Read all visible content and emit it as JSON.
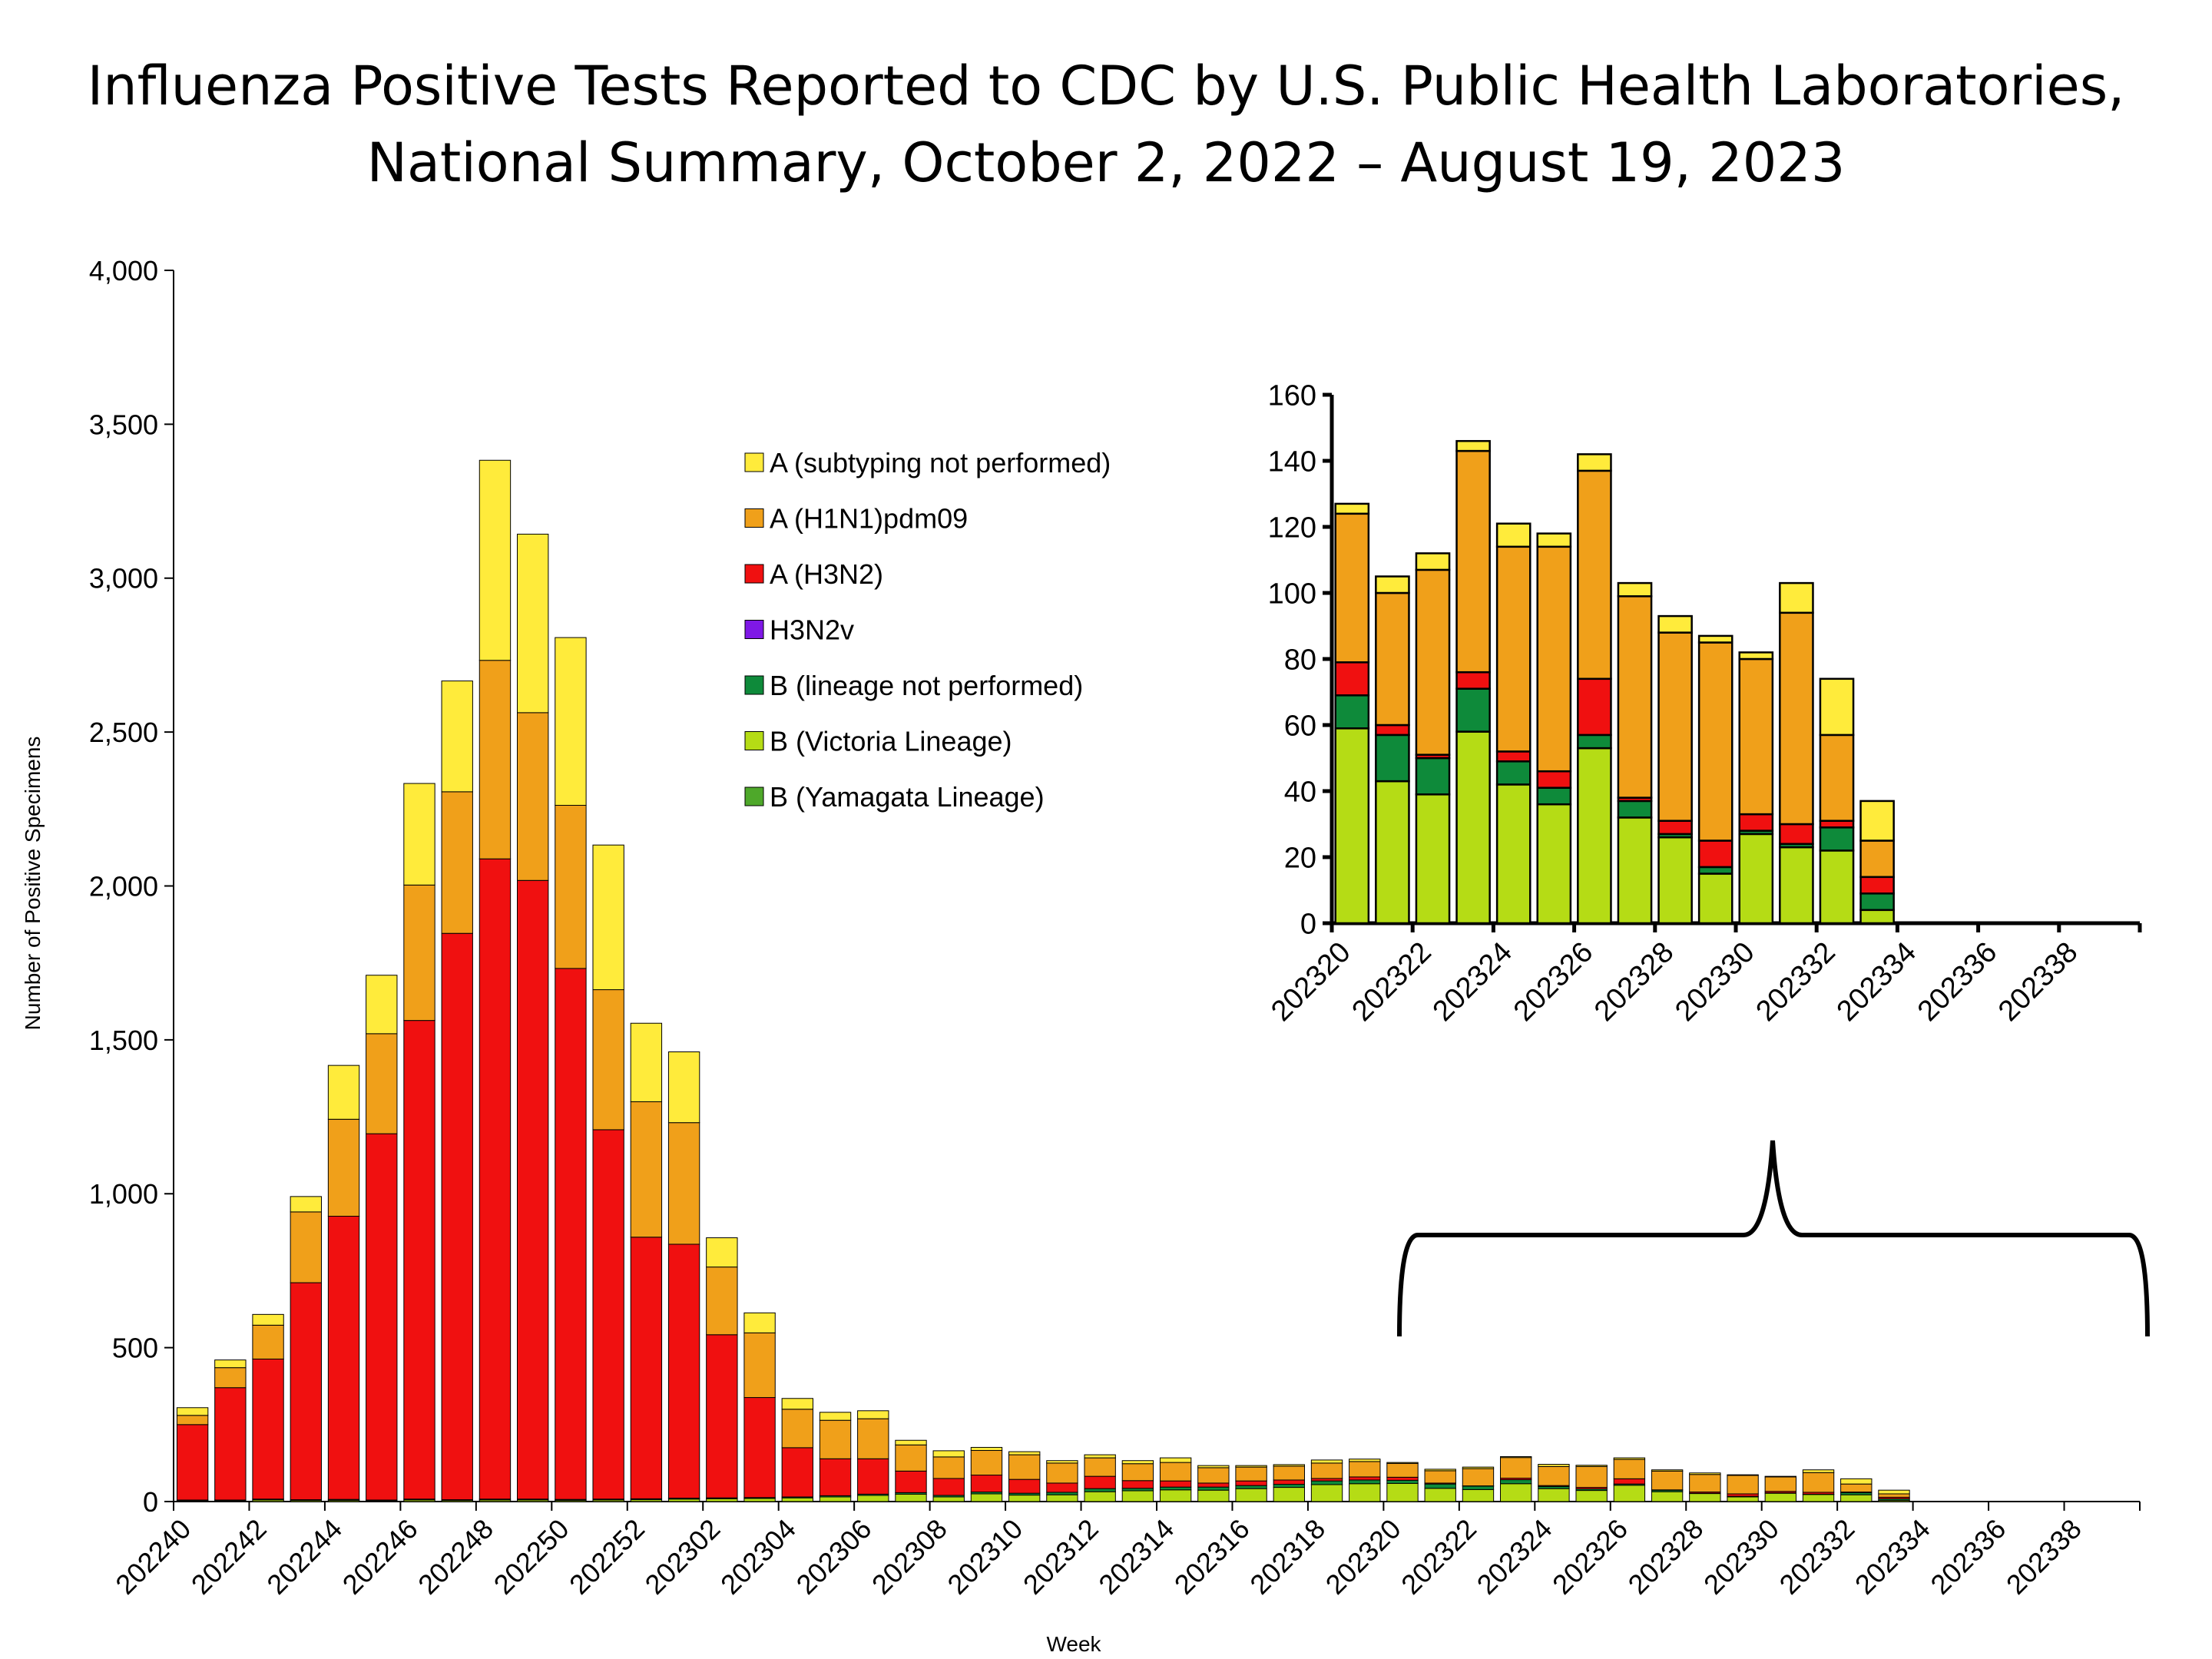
{
  "title": {
    "line1": "Influenza Positive Tests Reported to CDC by U.S. Public Health Laboratories,",
    "line2": "National Summary, October 2, 2022 – August 19, 2023"
  },
  "chart_data": [
    {
      "type": "bar",
      "stacked": true,
      "xlabel": "Week",
      "ylabel": "Number of Positive Specimens",
      "ylim": [
        0,
        4000
      ],
      "yticks": [
        0,
        500,
        1000,
        1500,
        2000,
        2500,
        3000,
        3500,
        4000
      ],
      "ytick_labels": [
        "0",
        "500",
        "1,000",
        "1,500",
        "2,000",
        "2,500",
        "3,000",
        "3,500",
        "4,000"
      ],
      "weeks": [
        "202240",
        "202241",
        "202242",
        "202243",
        "202244",
        "202245",
        "202246",
        "202247",
        "202248",
        "202249",
        "202250",
        "202251",
        "202252",
        "202301",
        "202302",
        "202303",
        "202304",
        "202305",
        "202306",
        "202307",
        "202308",
        "202309",
        "202310",
        "202311",
        "202312",
        "202313",
        "202314",
        "202315",
        "202316",
        "202317",
        "202318",
        "202319",
        "202320",
        "202321",
        "202322",
        "202323",
        "202324",
        "202325",
        "202326",
        "202327",
        "202328",
        "202329",
        "202330",
        "202331",
        "202332",
        "202333",
        "202334",
        "202335",
        "202336",
        "202337",
        "202338",
        "202339"
      ],
      "tick_labels": [
        "202240",
        "202242",
        "202244",
        "202246",
        "202248",
        "202250",
        "202252",
        "202302",
        "202304",
        "202306",
        "202308",
        "202310",
        "202312",
        "202314",
        "202316",
        "202318",
        "202320",
        "202322",
        "202324",
        "202326",
        "202328",
        "202330",
        "202332",
        "202334",
        "202336",
        "202338"
      ],
      "legend": [
        "A (subtyping not performed)",
        "A (H1N1)pdm09",
        "A (H3N2)",
        "H3N2v",
        "B (lineage not performed)",
        "B (Victoria Lineage)",
        "B (Yamagata Lineage)"
      ],
      "legend_position": "center-right",
      "colors": {
        "A (subtyping not performed)": "#ffeb3b",
        "A (H1N1)pdm09": "#f0a01a",
        "A (H3N2)": "#f01010",
        "H3N2v": "#7f18e6",
        "B (lineage not performed)": "#0e8a3a",
        "B (Victoria Lineage)": "#b5dc15",
        "B (Yamagata Lineage)": "#4ea82a"
      },
      "series": [
        {
          "name": "B (Yamagata Lineage)",
          "values": [
            0,
            0,
            0,
            0,
            0,
            0,
            0,
            0,
            0,
            0,
            0,
            0,
            0,
            0,
            0,
            0,
            0,
            0,
            0,
            0,
            0,
            0,
            0,
            0,
            0,
            0,
            0,
            0,
            0,
            0,
            0,
            0,
            0,
            0,
            0,
            0,
            0,
            0,
            0,
            0,
            0,
            0,
            0,
            0,
            0,
            0,
            0,
            0,
            0,
            0,
            0,
            0
          ]
        },
        {
          "name": "B (Victoria Lineage)",
          "values": [
            3,
            3,
            5,
            4,
            4,
            3,
            5,
            4,
            5,
            5,
            4,
            5,
            6,
            8,
            9,
            10,
            12,
            15,
            20,
            24,
            15,
            25,
            21,
            22,
            32,
            35,
            38,
            37,
            42,
            46,
            55,
            58,
            59,
            43,
            39,
            58,
            42,
            36,
            53,
            32,
            26,
            15,
            27,
            23,
            22,
            4,
            0,
            0,
            0,
            0,
            0,
            0
          ]
        },
        {
          "name": "B (lineage not performed)",
          "values": [
            2,
            2,
            3,
            2,
            3,
            2,
            3,
            2,
            3,
            3,
            3,
            3,
            3,
            3,
            3,
            3,
            3,
            4,
            4,
            5,
            5,
            6,
            6,
            8,
            10,
            8,
            9,
            10,
            10,
            10,
            12,
            12,
            10,
            14,
            11,
            13,
            7,
            5,
            4,
            5,
            1,
            2,
            1,
            1,
            7,
            5,
            0,
            0,
            0,
            0,
            0,
            0
          ]
        },
        {
          "name": "H3N2v",
          "values": [
            0,
            0,
            0,
            0,
            0,
            0,
            0,
            0,
            0,
            0,
            0,
            0,
            0,
            0,
            0,
            0,
            0,
            0,
            0,
            0,
            0,
            0,
            0,
            0,
            0,
            0,
            0,
            0,
            0,
            0,
            0,
            0,
            0,
            0,
            0,
            0,
            0,
            0,
            0,
            0,
            0,
            0,
            0,
            0,
            0,
            0,
            0,
            0,
            0,
            0,
            0,
            0
          ]
        },
        {
          "name": "A (H3N2)",
          "values": [
            245,
            365,
            455,
            705,
            920,
            1190,
            1555,
            1840,
            2080,
            2010,
            1725,
            1200,
            850,
            825,
            530,
            325,
            160,
            120,
            115,
            70,
            55,
            55,
            45,
            30,
            40,
            25,
            20,
            13,
            15,
            14,
            8,
            10,
            10,
            3,
            1,
            5,
            3,
            5,
            17,
            1,
            4,
            8,
            5,
            6,
            2,
            5,
            0,
            0,
            0,
            0,
            0,
            0
          ]
        },
        {
          "name": "A (H1N1)pdm09",
          "values": [
            30,
            65,
            110,
            230,
            315,
            325,
            440,
            460,
            645,
            545,
            530,
            455,
            440,
            395,
            220,
            210,
            125,
            125,
            130,
            85,
            70,
            80,
            80,
            65,
            60,
            55,
            60,
            50,
            45,
            45,
            50,
            50,
            45,
            40,
            56,
            67,
            62,
            68,
            63,
            61,
            57,
            60,
            47,
            64,
            26,
            11,
            0,
            0,
            0,
            0,
            0,
            0
          ]
        },
        {
          "name": "A (subtyping not performed)",
          "values": [
            25,
            25,
            35,
            50,
            175,
            190,
            330,
            360,
            650,
            580,
            545,
            470,
            255,
            230,
            95,
            65,
            35,
            26,
            26,
            15,
            20,
            10,
            10,
            8,
            10,
            10,
            15,
            7,
            5,
            5,
            10,
            8,
            3,
            5,
            5,
            3,
            7,
            4,
            5,
            4,
            5,
            2,
            2,
            9,
            17,
            12,
            0,
            0,
            0,
            0,
            0,
            0
          ]
        }
      ]
    },
    {
      "type": "bar",
      "stacked": true,
      "inset": true,
      "ylim": [
        0,
        160
      ],
      "yticks": [
        0,
        20,
        40,
        60,
        80,
        100,
        120,
        140,
        160
      ],
      "ytick_labels": [
        "0",
        "20",
        "40",
        "60",
        "80",
        "100",
        "120",
        "140",
        "160"
      ],
      "weeks": [
        "202320",
        "202321",
        "202322",
        "202323",
        "202324",
        "202325",
        "202326",
        "202327",
        "202328",
        "202329",
        "202330",
        "202331",
        "202332",
        "202333",
        "202334",
        "202335",
        "202336",
        "202337",
        "202338",
        "202339"
      ],
      "tick_labels": [
        "202320",
        "202322",
        "202324",
        "202326",
        "202328",
        "202330",
        "202332",
        "202334",
        "202336",
        "202338"
      ],
      "series": [
        {
          "name": "B (Victoria Lineage)",
          "values": [
            59,
            43,
            39,
            58,
            42,
            36,
            53,
            32,
            26,
            15,
            27,
            23,
            22,
            4,
            0,
            0,
            0,
            0,
            0,
            0
          ]
        },
        {
          "name": "B (lineage not performed)",
          "values": [
            10,
            14,
            11,
            13,
            7,
            5,
            4,
            5,
            1,
            2,
            1,
            1,
            7,
            5,
            0,
            0,
            0,
            0,
            0,
            0
          ]
        },
        {
          "name": "A (H3N2)",
          "values": [
            10,
            3,
            1,
            5,
            3,
            5,
            17,
            1,
            4,
            8,
            5,
            6,
            2,
            5,
            0,
            0,
            0,
            0,
            0,
            0
          ]
        },
        {
          "name": "A (H1N1)pdm09",
          "values": [
            45,
            40,
            56,
            67,
            62,
            68,
            63,
            61,
            57,
            60,
            47,
            64,
            26,
            11,
            0,
            0,
            0,
            0,
            0,
            0
          ]
        },
        {
          "name": "A (subtyping not performed)",
          "values": [
            3,
            5,
            5,
            3,
            7,
            4,
            5,
            4,
            5,
            2,
            2,
            9,
            17,
            12,
            0,
            0,
            0,
            0,
            0,
            0
          ]
        }
      ]
    }
  ]
}
